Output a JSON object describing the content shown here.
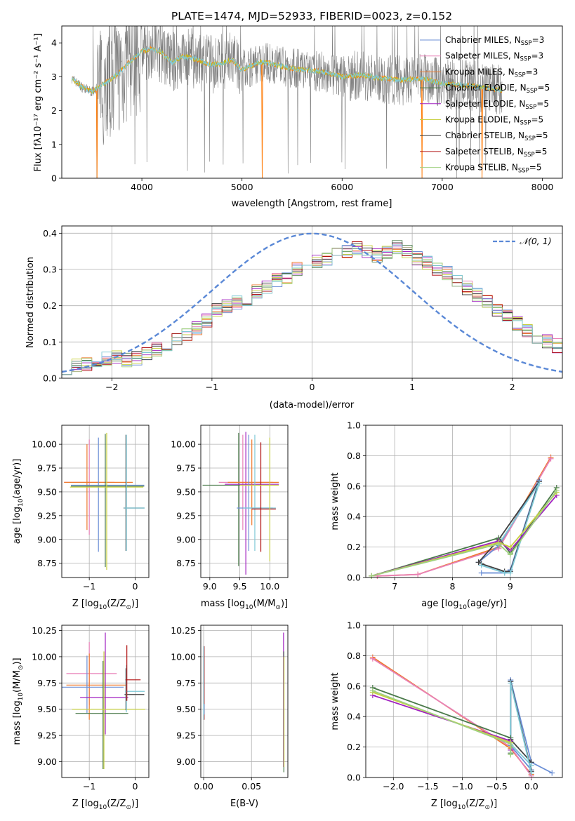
{
  "chart_data": [
    {
      "id": "spectrum",
      "type": "line",
      "title": "PLATE=1474, MJD=52933, FIBERID=0023, z=0.152",
      "xlabel": "wavelength [Angstrom, rest frame]",
      "ylabel_html": "Flux [fλ10⁻¹⁷ erg cm⁻² s⁻¹ A⁻¹]",
      "xlim": [
        3200,
        8200
      ],
      "ylim": [
        0,
        4.5
      ],
      "xticks": [
        4000,
        5000,
        6000,
        7000,
        8000
      ],
      "yticks": [
        0,
        1,
        2,
        3,
        4
      ],
      "data_color": "#808080",
      "model_colors": [
        "#ff7f0e",
        "#bcbd22",
        "#7ec8d6"
      ],
      "legend_placement": "upper-right",
      "legend": [
        {
          "color": "#6b8fd6",
          "name": "Chabrier MILES, N",
          "sub": "SSP",
          "eq": "=3"
        },
        {
          "color": "#e882b8",
          "name": "Salpeter MILES, N",
          "sub": "SSP",
          "eq": "=3"
        },
        {
          "color": "#ee7a2e",
          "name": "Kroupa MILES, N",
          "sub": "SSP",
          "eq": "=3"
        },
        {
          "color": "#4a7a4a",
          "name": "Chabrier ELODIE, N",
          "sub": "SSP",
          "eq": "=5"
        },
        {
          "color": "#a020c0",
          "name": "Salpeter ELODIE, N",
          "sub": "SSP",
          "eq": "=5"
        },
        {
          "color": "#c8d040",
          "name": "Kroupa ELODIE, N",
          "sub": "SSP",
          "eq": "=5"
        },
        {
          "color": "#404040",
          "name": "Chabrier STELIB, N",
          "sub": "SSP",
          "eq": "=5"
        },
        {
          "color": "#b01010",
          "name": "Salpeter STELIB, N",
          "sub": "SSP",
          "eq": "=5"
        },
        {
          "color": "#a0d080",
          "name": "Kroupa STELIB, N",
          "sub": "SSP",
          "eq": "=5"
        }
      ],
      "continuum": {
        "x": [
          3300,
          3400,
          3500,
          3600,
          3700,
          3800,
          3900,
          4000,
          4100,
          4200,
          4300,
          4400,
          4500,
          4600,
          4700,
          4800,
          4900,
          5000,
          5200,
          5400,
          5600,
          5800,
          6000,
          6200,
          6400,
          6600,
          6800,
          7000,
          7200,
          7400,
          7600
        ],
        "y": [
          2.95,
          2.7,
          2.55,
          2.75,
          2.95,
          3.2,
          3.5,
          3.75,
          3.85,
          3.7,
          3.4,
          3.6,
          3.55,
          3.45,
          3.35,
          3.4,
          3.5,
          3.2,
          3.45,
          3.3,
          3.2,
          3.15,
          3.0,
          3.05,
          2.95,
          2.9,
          2.95,
          2.8,
          2.75,
          2.7,
          2.6
        ]
      }
    },
    {
      "id": "residuals",
      "type": "histogram",
      "xlabel": "(data-model)/error",
      "ylabel": "Normed distribution",
      "xlim": [
        -2.5,
        2.5
      ],
      "ylim": [
        0,
        0.42
      ],
      "xticks": [
        -2,
        -1,
        0,
        1,
        2
      ],
      "yticks": [
        0.0,
        0.1,
        0.2,
        0.3,
        0.4
      ],
      "bin_width": 0.1,
      "bin_start": -2.5,
      "hist_values": [
        0.03,
        0.035,
        0.04,
        0.05,
        0.055,
        0.06,
        0.05,
        0.055,
        0.07,
        0.08,
        0.095,
        0.11,
        0.12,
        0.14,
        0.16,
        0.19,
        0.2,
        0.21,
        0.22,
        0.24,
        0.25,
        0.27,
        0.28,
        0.3,
        0.31,
        0.32,
        0.33,
        0.34,
        0.35,
        0.36,
        0.35,
        0.34,
        0.35,
        0.36,
        0.35,
        0.33,
        0.32,
        0.3,
        0.29,
        0.27,
        0.25,
        0.23,
        0.21,
        0.19,
        0.17,
        0.15,
        0.13,
        0.11,
        0.1,
        0.09
      ],
      "hist_colors": [
        "#6b8fd6",
        "#e882b8",
        "#ee7a2e",
        "#4a7a4a",
        "#a020c0",
        "#c8d040",
        "#404040",
        "#b01010",
        "#a0d080",
        "#7ec8d6"
      ],
      "gaussian_color": "#5a88d6",
      "legend_placement": "upper-right",
      "legend_label": "𝒩(0, 1)"
    },
    {
      "id": "age_vs_Z",
      "type": "errorbar",
      "xlabel_parts": {
        "pre": "Z [log",
        "sub": "10",
        "post": "(Z/Z",
        "sun": "⊙",
        "end": ")]"
      },
      "ylabel_parts": {
        "pre": "age  [log",
        "sub": "10",
        "post": "(age/yr)]"
      },
      "xlim": [
        -1.6,
        0.3
      ],
      "ylim": [
        8.6,
        10.2
      ],
      "xticks": [
        -1,
        0
      ],
      "yticks": [
        8.75,
        9.0,
        9.25,
        9.5,
        9.75,
        10.0
      ],
      "points": [
        {
          "x": -1.0,
          "y": 9.6,
          "xerr": [
            0.55,
            0.55
          ],
          "yerr": [
            0.55,
            0.45
          ],
          "color": "#e882b8"
        },
        {
          "x": -1.05,
          "y": 9.6,
          "xerr": [
            0.5,
            1.0
          ],
          "yerr": [
            0.5,
            0.4
          ],
          "color": "#ee7a2e"
        },
        {
          "x": -0.8,
          "y": 9.57,
          "xerr": [
            0.6,
            1.0
          ],
          "yerr": [
            0.7,
            0.5
          ],
          "color": "#6b8fd6"
        },
        {
          "x": -0.65,
          "y": 9.56,
          "xerr": [
            0.75,
            0.85
          ],
          "yerr": [
            0.85,
            0.55
          ],
          "color": "#4a7a4a"
        },
        {
          "x": -0.62,
          "y": 9.55,
          "xerr": [
            0.8,
            0.8
          ],
          "yerr": [
            0.87,
            0.57
          ],
          "color": "#c8d040"
        },
        {
          "x": -0.2,
          "y": 9.33,
          "xerr": [
            0.05,
            0.4
          ],
          "yerr": [
            0.45,
            0.77
          ],
          "color": "#404040"
        },
        {
          "x": -0.19,
          "y": 9.33,
          "xerr": [
            0.05,
            0.4
          ],
          "yerr": [
            0.45,
            0.77
          ],
          "color": "#7ec8d6"
        }
      ]
    },
    {
      "id": "age_vs_mass",
      "type": "errorbar",
      "xlabel_parts": {
        "pre": "mass [log",
        "sub": "10",
        "post": "(M/M",
        "sun": "⊙",
        "end": ")]"
      },
      "xlim": [
        8.85,
        10.3
      ],
      "ylim": [
        8.6,
        10.2
      ],
      "xticks": [
        9.0,
        9.5,
        10.0
      ],
      "yticks": [
        8.75,
        9.0,
        9.25,
        9.5,
        9.75,
        10.0
      ],
      "points": [
        {
          "x": 9.48,
          "y": 9.57,
          "xerr": [
            0.6,
            0.5
          ],
          "yerr": [
            0.85,
            0.55
          ],
          "color": "#4a7a4a"
        },
        {
          "x": 9.55,
          "y": 9.6,
          "xerr": [
            0.4,
            0.5
          ],
          "yerr": [
            0.5,
            0.5
          ],
          "color": "#e882b8"
        },
        {
          "x": 9.6,
          "y": 9.58,
          "xerr": [
            0.35,
            0.55
          ],
          "yerr": [
            0.95,
            0.55
          ],
          "color": "#a020c0"
        },
        {
          "x": 9.7,
          "y": 9.6,
          "xerr": [
            0.4,
            0.45
          ],
          "yerr": [
            0.45,
            0.45
          ],
          "color": "#ee7a2e"
        },
        {
          "x": 9.65,
          "y": 9.33,
          "xerr": [
            0.2,
            0.4
          ],
          "yerr": [
            0.45,
            0.77
          ],
          "color": "#6b8fd6"
        },
        {
          "x": 9.75,
          "y": 9.33,
          "xerr": [
            0.2,
            0.35
          ],
          "yerr": [
            0.45,
            0.77
          ],
          "color": "#7ec8d6"
        },
        {
          "x": 9.85,
          "y": 9.32,
          "xerr": [
            0.15,
            0.25
          ],
          "yerr": [
            0.45,
            0.7
          ],
          "color": "#b01010"
        },
        {
          "x": 10.0,
          "y": 9.57,
          "xerr": [
            0.5,
            0.15
          ],
          "yerr": [
            0.8,
            0.5
          ],
          "color": "#c8d040"
        }
      ]
    },
    {
      "id": "weight_vs_age",
      "type": "line",
      "xlabel_parts": {
        "pre": "age  [log",
        "sub": "10",
        "post": "(age/yr)]"
      },
      "ylabel": "mass weight",
      "xlim": [
        6.5,
        9.9
      ],
      "ylim": [
        0,
        1.0
      ],
      "xticks": [
        7,
        8,
        9
      ],
      "yticks": [
        0.0,
        0.2,
        0.4,
        0.6,
        0.8,
        1.0
      ],
      "series": [
        {
          "color": "#ee7a2e",
          "x": [
            6.7,
            7.4,
            8.8,
            9.7
          ],
          "y": [
            0.01,
            0.02,
            0.2,
            0.79
          ]
        },
        {
          "color": "#e882b8",
          "x": [
            6.7,
            7.4,
            8.8,
            9.7
          ],
          "y": [
            0.01,
            0.02,
            0.19,
            0.78
          ]
        },
        {
          "color": "#6b8fd6",
          "x": [
            8.5,
            8.9,
            9.0,
            9.5,
            8.8,
            8.45
          ],
          "y": [
            0.03,
            0.03,
            0.05,
            0.64,
            0.21,
            0.1
          ]
        },
        {
          "color": "#404040",
          "x": [
            8.5,
            8.9,
            9.0,
            9.5,
            8.8,
            8.45
          ],
          "y": [
            0.09,
            0.04,
            0.04,
            0.63,
            0.25,
            0.1
          ]
        },
        {
          "color": "#7ec8d6",
          "x": [
            8.5,
            8.9,
            9.0,
            9.5,
            8.8
          ],
          "y": [
            0.08,
            0.03,
            0.03,
            0.62,
            0.22
          ]
        },
        {
          "color": "#4a7a4a",
          "x": [
            6.6,
            8.8,
            9.0,
            9.8
          ],
          "y": [
            0.01,
            0.26,
            0.16,
            0.59
          ]
        },
        {
          "color": "#a020c0",
          "x": [
            6.6,
            8.8,
            9.0,
            9.8
          ],
          "y": [
            0.01,
            0.24,
            0.18,
            0.54
          ]
        },
        {
          "color": "#c8d040",
          "x": [
            6.6,
            8.8,
            9.0,
            9.8
          ],
          "y": [
            0.01,
            0.23,
            0.2,
            0.56
          ]
        },
        {
          "color": "#a0d080",
          "x": [
            6.6,
            8.8,
            9.0,
            9.8
          ],
          "y": [
            0.01,
            0.22,
            0.15,
            0.57
          ]
        }
      ]
    },
    {
      "id": "mass_vs_Z",
      "type": "errorbar",
      "xlabel_parts": {
        "pre": "Z [log",
        "sub": "10",
        "post": "(Z/Z",
        "sun": "⊙",
        "end": ")]"
      },
      "ylabel_parts": {
        "pre": "mass [log",
        "sub": "10",
        "post": "(M/M",
        "sun": "⊙",
        "end": ")]"
      },
      "xlim": [
        -1.6,
        0.3
      ],
      "ylim": [
        8.85,
        10.3
      ],
      "xticks": [
        -1,
        0
      ],
      "yticks": [
        9.0,
        9.25,
        9.5,
        9.75,
        10.0,
        10.25
      ],
      "points": [
        {
          "x": -1.0,
          "y": 9.84,
          "xerr": [
            0.5,
            0.6
          ],
          "yerr": [
            0.3,
            0.3
          ],
          "color": "#e882b8"
        },
        {
          "x": -1.0,
          "y": 9.73,
          "xerr": [
            0.5,
            0.8
          ],
          "yerr": [
            0.33,
            0.3
          ],
          "color": "#ee7a2e"
        },
        {
          "x": -1.05,
          "y": 9.71,
          "xerr": [
            0.55,
            0.8
          ],
          "yerr": [
            0.25,
            0.3
          ],
          "color": "#6b8fd6"
        },
        {
          "x": -0.65,
          "y": 9.61,
          "xerr": [
            0.55,
            0.5
          ],
          "yerr": [
            0.35,
            0.62
          ],
          "color": "#a020c0"
        },
        {
          "x": -0.7,
          "y": 9.46,
          "xerr": [
            0.6,
            0.55
          ],
          "yerr": [
            0.53,
            0.5
          ],
          "color": "#4a7a4a"
        },
        {
          "x": -0.68,
          "y": 9.5,
          "xerr": [
            0.7,
            0.9
          ],
          "yerr": [
            0.57,
            0.55
          ],
          "color": "#c8d040"
        },
        {
          "x": -0.2,
          "y": 9.64,
          "xerr": [
            0.03,
            0.4
          ],
          "yerr": [
            0.15,
            0.25
          ],
          "color": "#404040"
        },
        {
          "x": -0.19,
          "y": 9.67,
          "xerr": [
            0.03,
            0.4
          ],
          "yerr": [
            0.2,
            0.25
          ],
          "color": "#7ec8d6"
        },
        {
          "x": -0.18,
          "y": 9.78,
          "xerr": [
            0.03,
            0.3
          ],
          "yerr": [
            0.2,
            0.33
          ],
          "color": "#b01010"
        }
      ]
    },
    {
      "id": "mass_vs_EBV",
      "type": "errorbar",
      "xlabel": "E(B-V)",
      "xlim": [
        -0.003,
        0.088
      ],
      "ylim": [
        8.85,
        10.3
      ],
      "xticks": [
        0.0,
        0.05
      ],
      "yticks": [
        9.0,
        9.25,
        9.5,
        9.75,
        10.0,
        10.25
      ],
      "points": [
        {
          "x": 0.0,
          "y": 9.7,
          "xerr": [
            0,
            0
          ],
          "yerr": [
            0.3,
            0.4
          ],
          "color": "#ee7a2e"
        },
        {
          "x": 0.0,
          "y": 9.65,
          "xerr": [
            0,
            0
          ],
          "yerr": [
            0.2,
            0.45
          ],
          "color": "#e882b8"
        },
        {
          "x": 0.0005,
          "y": 9.75,
          "xerr": [
            0,
            0
          ],
          "yerr": [
            0.35,
            0.35
          ],
          "color": "#b01010"
        },
        {
          "x": 0.0005,
          "y": 9.5,
          "xerr": [
            0,
            0
          ],
          "yerr": [
            0.05,
            0.05
          ],
          "color": "#6b8fd6"
        },
        {
          "x": 0.0,
          "y": 9.9,
          "xerr": [
            0,
            0
          ],
          "yerr": [
            0.5,
            0.2
          ],
          "color": "#7ec8d6"
        },
        {
          "x": 0.0835,
          "y": 9.6,
          "xerr": [
            0,
            0
          ],
          "yerr": [
            0.65,
            0.63
          ],
          "color": "#a020c0"
        },
        {
          "x": 0.0838,
          "y": 9.5,
          "xerr": [
            0,
            0
          ],
          "yerr": [
            0.6,
            0.55
          ],
          "color": "#4a7a4a"
        },
        {
          "x": 0.084,
          "y": 9.5,
          "xerr": [
            0,
            0
          ],
          "yerr": [
            0.55,
            0.5
          ],
          "color": "#c8d040"
        }
      ]
    },
    {
      "id": "weight_vs_Z",
      "type": "line",
      "xlabel_parts": {
        "pre": "Z [log",
        "sub": "10",
        "post": "(Z/Z",
        "sun": "⊙",
        "end": ")]"
      },
      "ylabel": "mass weight",
      "xlim": [
        -2.4,
        0.45
      ],
      "ylim": [
        0,
        1.0
      ],
      "xticks": [
        -2.0,
        -1.5,
        -1.0,
        -0.5,
        0.0
      ],
      "xtick_labels": [
        "−2.0",
        "−1.5",
        "−1.0",
        "−0.5",
        "0.0"
      ],
      "yticks": [
        0.0,
        0.2,
        0.4,
        0.6,
        0.8,
        1.0
      ],
      "series": [
        {
          "color": "#ee7a2e",
          "x": [
            -2.3,
            -0.3,
            0.0
          ],
          "y": [
            0.79,
            0.19,
            0.02
          ]
        },
        {
          "color": "#e882b8",
          "x": [
            -2.3,
            -0.3,
            0.0
          ],
          "y": [
            0.78,
            0.2,
            0.01
          ]
        },
        {
          "color": "#6b8fd6",
          "x": [
            0.3,
            0.0,
            -0.3,
            -0.3,
            0.0
          ],
          "y": [
            0.03,
            0.1,
            0.64,
            0.21,
            0.05
          ]
        },
        {
          "color": "#404040",
          "x": [
            0.0,
            -0.3,
            -0.3,
            0.0
          ],
          "y": [
            0.04,
            0.63,
            0.25,
            0.1
          ]
        },
        {
          "color": "#7ec8d6",
          "x": [
            0.0,
            -0.3,
            -0.3,
            0.0
          ],
          "y": [
            0.03,
            0.62,
            0.22,
            0.08
          ]
        },
        {
          "color": "#4a7a4a",
          "x": [
            -2.3,
            -0.3,
            -0.3
          ],
          "y": [
            0.59,
            0.26,
            0.16
          ]
        },
        {
          "color": "#a020c0",
          "x": [
            -2.3,
            -0.3,
            -0.3
          ],
          "y": [
            0.54,
            0.24,
            0.18
          ]
        },
        {
          "color": "#c8d040",
          "x": [
            -2.3,
            -0.3,
            -0.3
          ],
          "y": [
            0.56,
            0.23,
            0.2
          ]
        },
        {
          "color": "#a0d080",
          "x": [
            -2.3,
            -0.3,
            -0.3
          ],
          "y": [
            0.57,
            0.22,
            0.15
          ]
        }
      ]
    }
  ]
}
